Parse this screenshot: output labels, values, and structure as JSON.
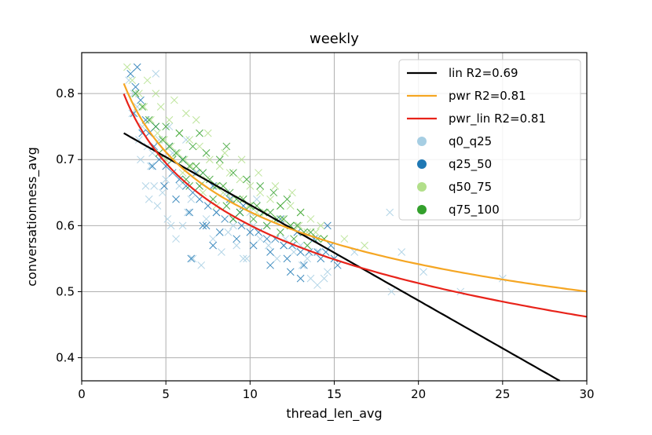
{
  "chart_data": {
    "type": "scatter",
    "title": "weekly",
    "xlabel": "thread_len_avg",
    "ylabel": "conversationness_avg",
    "xlim": [
      0,
      30
    ],
    "ylim": [
      0.365,
      0.862
    ],
    "xticks": [
      0,
      5,
      10,
      15,
      20,
      25,
      30
    ],
    "yticks": [
      0.4,
      0.5,
      0.6,
      0.7,
      0.8
    ],
    "grid": true,
    "legend_position": "top-right",
    "scatter_series": [
      {
        "name": "q0_q25",
        "color": "#a6cee3",
        "marker": "x",
        "points": [
          [
            2.8,
            0.82
          ],
          [
            3.1,
            0.8
          ],
          [
            3.3,
            0.78
          ],
          [
            3.6,
            0.75
          ],
          [
            3.9,
            0.72
          ],
          [
            4.1,
            0.69
          ],
          [
            4.3,
            0.66
          ],
          [
            4.0,
            0.64
          ],
          [
            3.8,
            0.66
          ],
          [
            4.5,
            0.63
          ],
          [
            4.8,
            0.65
          ],
          [
            5.1,
            0.61
          ],
          [
            5.3,
            0.6
          ],
          [
            5.6,
            0.58
          ],
          [
            6.0,
            0.6
          ],
          [
            6.3,
            0.62
          ],
          [
            6.6,
            0.55
          ],
          [
            7.1,
            0.54
          ],
          [
            7.4,
            0.61
          ],
          [
            7.8,
            0.58
          ],
          [
            8.3,
            0.56
          ],
          [
            8.7,
            0.59
          ],
          [
            9.2,
            0.57
          ],
          [
            9.6,
            0.55
          ],
          [
            10.2,
            0.6
          ],
          [
            10.6,
            0.58
          ],
          [
            11.1,
            0.57
          ],
          [
            11.6,
            0.55
          ],
          [
            12.1,
            0.58
          ],
          [
            12.6,
            0.56
          ],
          [
            13.1,
            0.54
          ],
          [
            13.6,
            0.52
          ],
          [
            14.1,
            0.56
          ],
          [
            14.6,
            0.53
          ],
          [
            15.0,
            0.55
          ],
          [
            3.5,
            0.7
          ],
          [
            4.2,
            0.71
          ],
          [
            5.0,
            0.67
          ],
          [
            5.8,
            0.66
          ],
          [
            6.5,
            0.64
          ],
          [
            7.0,
            0.66
          ],
          [
            8.0,
            0.62
          ],
          [
            9.0,
            0.6
          ],
          [
            10.0,
            0.62
          ],
          [
            11.0,
            0.6
          ],
          [
            12.0,
            0.57
          ],
          [
            13.0,
            0.57
          ],
          [
            14.0,
            0.51
          ],
          [
            16.2,
            0.56
          ],
          [
            18.4,
            0.5
          ],
          [
            18.3,
            0.62
          ],
          [
            19.0,
            0.56
          ],
          [
            20.3,
            0.53
          ],
          [
            22.5,
            0.5
          ],
          [
            25.0,
            0.52
          ],
          [
            5.2,
            0.75
          ],
          [
            4.6,
            0.73
          ],
          [
            6.0,
            0.7
          ],
          [
            7.2,
            0.68
          ],
          [
            8.6,
            0.65
          ],
          [
            10.4,
            0.64
          ],
          [
            12.4,
            0.6
          ],
          [
            3.0,
            0.77
          ],
          [
            3.4,
            0.73
          ],
          [
            4.4,
            0.83
          ],
          [
            5.4,
            0.71
          ],
          [
            6.2,
            0.73
          ],
          [
            13.4,
            0.55
          ],
          [
            14.4,
            0.52
          ],
          [
            9.8,
            0.55
          ]
        ]
      },
      {
        "name": "q25_50",
        "color": "#1f78b4",
        "marker": "x",
        "points": [
          [
            2.9,
            0.83
          ],
          [
            3.2,
            0.81
          ],
          [
            3.5,
            0.79
          ],
          [
            3.8,
            0.76
          ],
          [
            4.0,
            0.74
          ],
          [
            4.3,
            0.72
          ],
          [
            4.6,
            0.7
          ],
          [
            5.0,
            0.69
          ],
          [
            5.4,
            0.68
          ],
          [
            5.8,
            0.67
          ],
          [
            6.2,
            0.66
          ],
          [
            6.6,
            0.65
          ],
          [
            7.0,
            0.64
          ],
          [
            7.5,
            0.63
          ],
          [
            8.0,
            0.62
          ],
          [
            8.5,
            0.61
          ],
          [
            9.0,
            0.61
          ],
          [
            9.5,
            0.6
          ],
          [
            10.0,
            0.59
          ],
          [
            10.5,
            0.59
          ],
          [
            11.0,
            0.58
          ],
          [
            11.5,
            0.58
          ],
          [
            12.0,
            0.57
          ],
          [
            12.5,
            0.57
          ],
          [
            13.0,
            0.56
          ],
          [
            13.5,
            0.56
          ],
          [
            14.0,
            0.56
          ],
          [
            14.5,
            0.56
          ],
          [
            15.0,
            0.55
          ],
          [
            3.1,
            0.77
          ],
          [
            3.6,
            0.74
          ],
          [
            4.2,
            0.69
          ],
          [
            4.9,
            0.66
          ],
          [
            5.6,
            0.64
          ],
          [
            6.4,
            0.62
          ],
          [
            7.2,
            0.6
          ],
          [
            8.2,
            0.59
          ],
          [
            9.2,
            0.58
          ],
          [
            10.2,
            0.57
          ],
          [
            11.2,
            0.56
          ],
          [
            12.2,
            0.55
          ],
          [
            13.2,
            0.54
          ],
          [
            14.2,
            0.55
          ],
          [
            8.8,
            0.64
          ],
          [
            9.6,
            0.63
          ],
          [
            10.8,
            0.62
          ],
          [
            11.8,
            0.61
          ],
          [
            12.8,
            0.59
          ],
          [
            13.8,
            0.58
          ],
          [
            14.8,
            0.57
          ],
          [
            3.3,
            0.84
          ],
          [
            4.4,
            0.75
          ],
          [
            5.2,
            0.72
          ],
          [
            6.0,
            0.7
          ],
          [
            6.8,
            0.68
          ],
          [
            7.8,
            0.66
          ],
          [
            11.2,
            0.54
          ],
          [
            12.4,
            0.53
          ],
          [
            13.0,
            0.52
          ],
          [
            6.5,
            0.55
          ],
          [
            7.8,
            0.57
          ],
          [
            9.4,
            0.62
          ],
          [
            14.6,
            0.6
          ],
          [
            15.2,
            0.54
          ],
          [
            7.4,
            0.6
          ]
        ]
      },
      {
        "name": "q50_75",
        "color": "#b2df8a",
        "marker": "x",
        "points": [
          [
            2.7,
            0.84
          ],
          [
            3.0,
            0.82
          ],
          [
            3.4,
            0.8
          ],
          [
            3.7,
            0.78
          ],
          [
            4.1,
            0.76
          ],
          [
            4.5,
            0.74
          ],
          [
            4.9,
            0.73
          ],
          [
            5.3,
            0.72
          ],
          [
            5.7,
            0.71
          ],
          [
            6.1,
            0.7
          ],
          [
            6.5,
            0.69
          ],
          [
            6.9,
            0.68
          ],
          [
            7.4,
            0.67
          ],
          [
            7.9,
            0.66
          ],
          [
            8.4,
            0.65
          ],
          [
            8.9,
            0.64
          ],
          [
            9.4,
            0.64
          ],
          [
            9.9,
            0.63
          ],
          [
            10.4,
            0.62
          ],
          [
            10.9,
            0.62
          ],
          [
            11.4,
            0.61
          ],
          [
            11.9,
            0.61
          ],
          [
            12.4,
            0.6
          ],
          [
            12.9,
            0.6
          ],
          [
            13.4,
            0.59
          ],
          [
            13.9,
            0.59
          ],
          [
            14.4,
            0.58
          ],
          [
            4.7,
            0.78
          ],
          [
            5.2,
            0.76
          ],
          [
            5.8,
            0.74
          ],
          [
            6.4,
            0.73
          ],
          [
            7.0,
            0.72
          ],
          [
            7.6,
            0.7
          ],
          [
            8.2,
            0.69
          ],
          [
            8.8,
            0.68
          ],
          [
            9.4,
            0.67
          ],
          [
            10.0,
            0.66
          ],
          [
            10.6,
            0.65
          ],
          [
            11.2,
            0.64
          ],
          [
            11.8,
            0.63
          ],
          [
            12.4,
            0.63
          ],
          [
            13.0,
            0.62
          ],
          [
            13.6,
            0.61
          ],
          [
            14.2,
            0.6
          ],
          [
            3.9,
            0.82
          ],
          [
            4.4,
            0.8
          ],
          [
            5.5,
            0.79
          ],
          [
            6.2,
            0.77
          ],
          [
            6.8,
            0.76
          ],
          [
            7.5,
            0.74
          ],
          [
            8.5,
            0.71
          ],
          [
            9.5,
            0.7
          ],
          [
            10.5,
            0.68
          ],
          [
            11.5,
            0.66
          ],
          [
            12.5,
            0.65
          ],
          [
            15.6,
            0.58
          ],
          [
            16.8,
            0.57
          ],
          [
            5.0,
            0.7
          ],
          [
            6.0,
            0.68
          ],
          [
            7.2,
            0.65
          ],
          [
            8.0,
            0.63
          ]
        ]
      },
      {
        "name": "q75_100",
        "color": "#33a02c",
        "marker": "x",
        "points": [
          [
            3.2,
            0.8
          ],
          [
            3.6,
            0.78
          ],
          [
            4.0,
            0.76
          ],
          [
            4.4,
            0.75
          ],
          [
            4.8,
            0.73
          ],
          [
            5.2,
            0.72
          ],
          [
            5.6,
            0.71
          ],
          [
            6.0,
            0.7
          ],
          [
            6.4,
            0.69
          ],
          [
            6.8,
            0.69
          ],
          [
            7.2,
            0.68
          ],
          [
            7.6,
            0.67
          ],
          [
            8.0,
            0.66
          ],
          [
            8.4,
            0.66
          ],
          [
            8.8,
            0.65
          ],
          [
            9.2,
            0.64
          ],
          [
            9.6,
            0.64
          ],
          [
            10.0,
            0.63
          ],
          [
            10.4,
            0.63
          ],
          [
            10.8,
            0.62
          ],
          [
            11.2,
            0.62
          ],
          [
            11.6,
            0.61
          ],
          [
            12.0,
            0.61
          ],
          [
            12.4,
            0.6
          ],
          [
            12.8,
            0.6
          ],
          [
            13.2,
            0.59
          ],
          [
            13.6,
            0.59
          ],
          [
            14.0,
            0.58
          ],
          [
            14.4,
            0.58
          ],
          [
            4.6,
            0.71
          ],
          [
            5.4,
            0.7
          ],
          [
            6.2,
            0.67
          ],
          [
            7.0,
            0.66
          ],
          [
            7.8,
            0.64
          ],
          [
            8.6,
            0.63
          ],
          [
            9.4,
            0.62
          ],
          [
            10.2,
            0.61
          ],
          [
            11.0,
            0.6
          ],
          [
            11.8,
            0.59
          ],
          [
            12.6,
            0.58
          ],
          [
            13.4,
            0.57
          ],
          [
            5.0,
            0.75
          ],
          [
            5.8,
            0.74
          ],
          [
            6.6,
            0.72
          ],
          [
            7.4,
            0.71
          ],
          [
            8.2,
            0.7
          ],
          [
            9.0,
            0.68
          ],
          [
            9.8,
            0.67
          ],
          [
            10.6,
            0.66
          ],
          [
            11.4,
            0.65
          ],
          [
            12.2,
            0.64
          ],
          [
            13.0,
            0.62
          ],
          [
            8.6,
            0.72
          ],
          [
            7.0,
            0.74
          ],
          [
            11.8,
            0.63
          ],
          [
            6.4,
            0.66
          ],
          [
            9.0,
            0.61
          ]
        ]
      }
    ],
    "lines": [
      {
        "name": "lin R2=0.69",
        "color": "#000000",
        "kind": "linear",
        "x_range": [
          2.5,
          28.4
        ],
        "a": 0.7762,
        "b": -0.01448
      },
      {
        "name": "pwr R2=0.81",
        "color": "#f5a623",
        "kind": "power",
        "x_range": [
          2.5,
          30
        ],
        "a": 0.9762,
        "b": -0.1966
      },
      {
        "name": "pwr_lin R2=0.81",
        "color": "#e8231a",
        "kind": "power_linear",
        "x_range": [
          2.5,
          30
        ],
        "a": 0.9602,
        "b": -0.1966,
        "c": -0.001
      }
    ],
    "legend": [
      {
        "label": "lin R2=0.69",
        "kind": "line",
        "color": "#000000"
      },
      {
        "label": "pwr R2=0.81",
        "kind": "line",
        "color": "#f5a623"
      },
      {
        "label": "pwr_lin R2=0.81",
        "kind": "line",
        "color": "#e8231a"
      },
      {
        "label": "q0_q25",
        "kind": "dot",
        "color": "#a6cee3"
      },
      {
        "label": "q25_50",
        "kind": "dot",
        "color": "#1f78b4"
      },
      {
        "label": "q50_75",
        "kind": "dot",
        "color": "#b2df8a"
      },
      {
        "label": "q75_100",
        "kind": "dot",
        "color": "#33a02c"
      }
    ]
  }
}
